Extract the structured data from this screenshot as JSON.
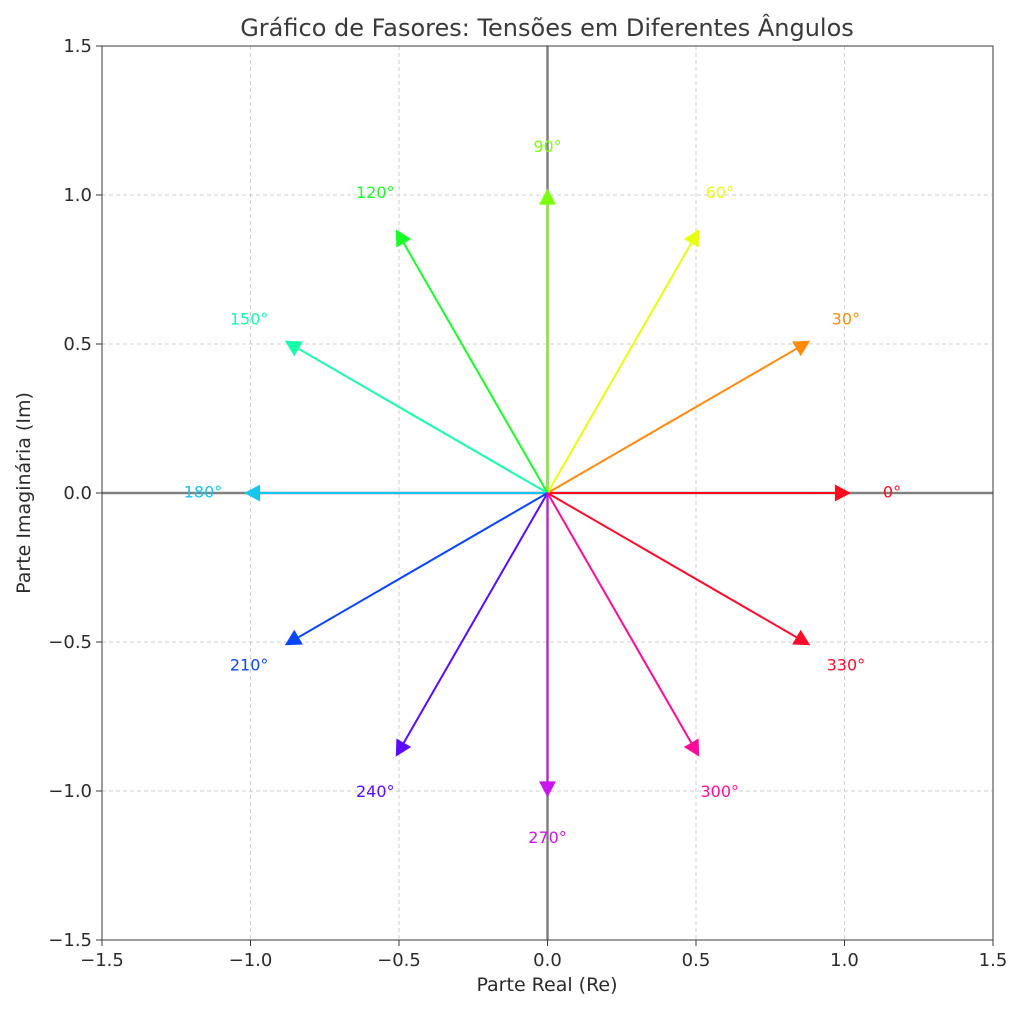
{
  "chart_data": {
    "type": "phasor",
    "title": "Gráfico de Fasores: Tensões em Diferentes Ângulos",
    "xlabel": "Parte Real (Re)",
    "ylabel": "Parte Imaginária (Im)",
    "xlim": [
      -1.5,
      1.5
    ],
    "ylim": [
      -1.5,
      1.5
    ],
    "x_ticks": [
      -1.5,
      -1.0,
      -0.5,
      0.0,
      0.5,
      1.0,
      1.5
    ],
    "y_ticks": [
      -1.5,
      -1.0,
      -0.5,
      0.0,
      0.5,
      1.0,
      1.5
    ],
    "x_tick_labels": [
      "−1.5",
      "−1.0",
      "−0.5",
      "0.0",
      "0.5",
      "1.0",
      "1.5"
    ],
    "y_tick_labels": [
      "−1.5",
      "−1.0",
      "−0.5",
      "0.0",
      "0.5",
      "1.0",
      "1.5"
    ],
    "grid": true,
    "magnitude": 1.0,
    "phasors": [
      {
        "angle": 0,
        "label": "0°",
        "color": "#ff0b1c"
      },
      {
        "angle": 30,
        "label": "30°",
        "color": "#ff8a0b"
      },
      {
        "angle": 60,
        "label": "60°",
        "color": "#e8ff0b"
      },
      {
        "angle": 90,
        "label": "90°",
        "color": "#7bff0b"
      },
      {
        "angle": 120,
        "label": "120°",
        "color": "#16ff26"
      },
      {
        "angle": 150,
        "label": "150°",
        "color": "#16ffa8"
      },
      {
        "angle": 180,
        "label": "180°",
        "color": "#16c6ee"
      },
      {
        "angle": 210,
        "label": "210°",
        "color": "#0b46ff"
      },
      {
        "angle": 240,
        "label": "240°",
        "color": "#5a0bff"
      },
      {
        "angle": 270,
        "label": "270°",
        "color": "#cc16ee"
      },
      {
        "angle": 300,
        "label": "300°",
        "color": "#ff0b9c"
      },
      {
        "angle": 330,
        "label": "330°",
        "color": "#ff0b2c"
      }
    ]
  }
}
